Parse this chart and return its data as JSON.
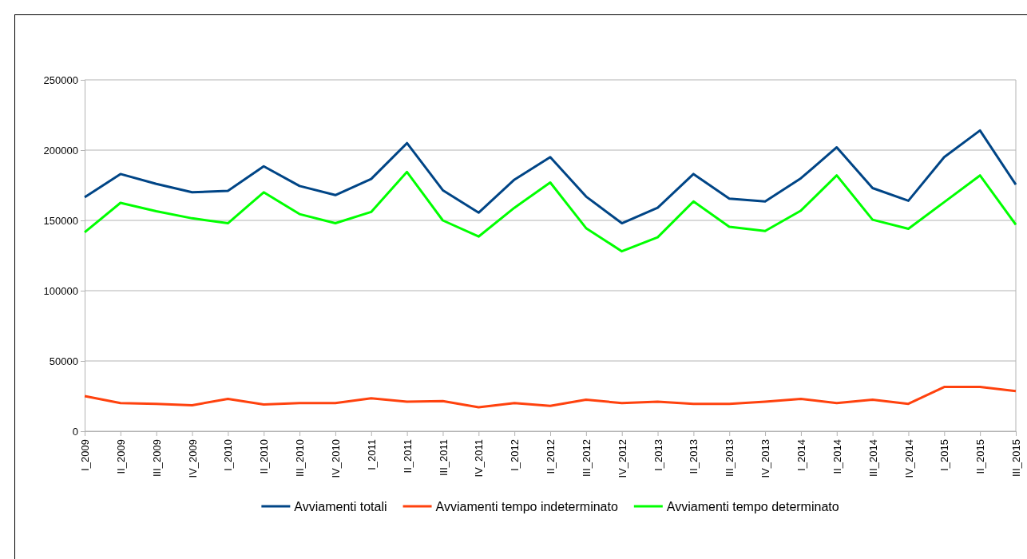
{
  "chart_data": {
    "type": "line",
    "categories": [
      "I_2009",
      "II_2009",
      "III_2009",
      "IV_2009",
      "I_2010",
      "II_2010",
      "III_2010",
      "IV_2010",
      "I_2011",
      "II_2011",
      "III_2011",
      "IV_2011",
      "I_2012",
      "II_2012",
      "III_2012",
      "IV_2012",
      "I_2013",
      "II_2013",
      "III_2013",
      "IV_2013",
      "I_2014",
      "II_2014",
      "III_2014",
      "IV_2014",
      "I_2015",
      "II_2015",
      "III_2015"
    ],
    "series": [
      {
        "name": "Avviamenti totali",
        "color": "#004586",
        "values": [
          166500,
          183000,
          176000,
          170000,
          171000,
          188500,
          174500,
          168000,
          179500,
          205000,
          171500,
          155500,
          179000,
          195000,
          167000,
          148000,
          159000,
          183000,
          165500,
          163500,
          180000,
          202000,
          173000,
          164000,
          195000,
          214000,
          175500
        ]
      },
      {
        "name": "Avviamenti tempo indeterminato",
        "color": "#ff420e",
        "values": [
          25000,
          20000,
          19500,
          18500,
          23000,
          19000,
          20000,
          20000,
          23500,
          21000,
          21500,
          17000,
          20000,
          18000,
          22500,
          20000,
          21000,
          19500,
          19500,
          21000,
          23000,
          20000,
          22500,
          19500,
          31500,
          31500,
          28500
        ]
      },
      {
        "name": "Avviamenti tempo determinato",
        "color": "#00ff00",
        "values": [
          141500,
          162500,
          156500,
          151500,
          148000,
          170000,
          154500,
          148000,
          156000,
          184500,
          150000,
          138500,
          159000,
          177000,
          144500,
          128000,
          138000,
          163500,
          145500,
          142500,
          157000,
          182000,
          150500,
          144000,
          163000,
          182000,
          147000
        ]
      }
    ],
    "ylim": [
      0,
      250000
    ],
    "yticks": [
      0,
      50000,
      100000,
      150000,
      200000,
      250000
    ],
    "grid": "y",
    "legend": "bottom",
    "marker": "none",
    "line_style": "solid"
  }
}
